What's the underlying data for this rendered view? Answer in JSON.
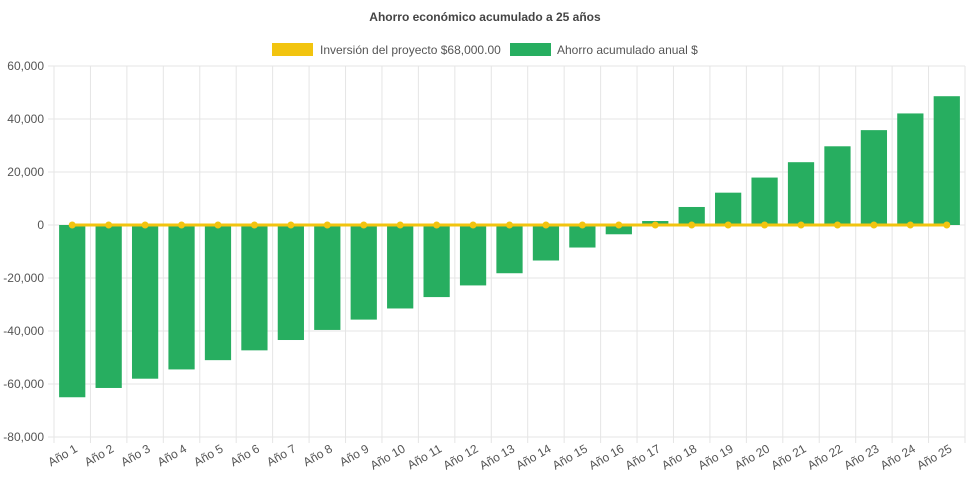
{
  "chart_data": {
    "type": "bar",
    "title": "Ahorro económico acumulado a 25 años",
    "categories": [
      "Año 1",
      "Año 2",
      "Año 3",
      "Año 4",
      "Año 5",
      "Año 6",
      "Año 7",
      "Año 8",
      "Año 9",
      "Año 10",
      "Año 11",
      "Año 12",
      "Año 13",
      "Año 14",
      "Año 15",
      "Año 16",
      "Año 17",
      "Año 18",
      "Año 19",
      "Año 20",
      "Año 21",
      "Año 22",
      "Año 23",
      "Año 24",
      "Año 25"
    ],
    "series": [
      {
        "name": "Inversión del proyecto $68,000.00",
        "type": "line",
        "color": "#f2c40f",
        "values": [
          0,
          0,
          0,
          0,
          0,
          0,
          0,
          0,
          0,
          0,
          0,
          0,
          0,
          0,
          0,
          0,
          0,
          0,
          0,
          0,
          0,
          0,
          0,
          0,
          0
        ]
      },
      {
        "name": "Ahorro acumulado anual $",
        "type": "bar",
        "color": "#27ae60",
        "values": [
          -65000,
          -61500,
          -58000,
          -54500,
          -51000,
          -47300,
          -43400,
          -39600,
          -35700,
          -31500,
          -27200,
          -22800,
          -18200,
          -13400,
          -8500,
          -3500,
          1500,
          6800,
          12200,
          17900,
          23700,
          29700,
          35800,
          42100,
          48600
        ]
      }
    ],
    "ylim": [
      -80000,
      60000
    ],
    "yticks": [
      "60,000",
      "40,000",
      "20,000",
      "0",
      "-20,000",
      "-40,000",
      "-60,000",
      "-80,000"
    ],
    "ytick_values": [
      60000,
      40000,
      20000,
      0,
      -20000,
      -40000,
      -60000,
      -80000
    ],
    "legend_position": "top",
    "grid": true
  }
}
